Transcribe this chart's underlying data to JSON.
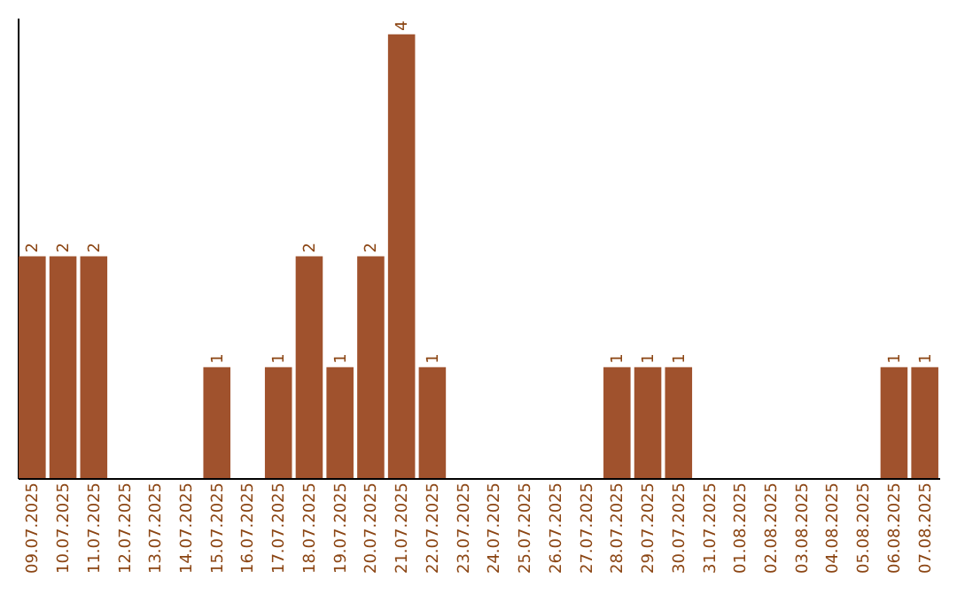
{
  "chart_data": {
    "type": "bar",
    "categories": [
      "09.07.2025",
      "10.07.2025",
      "11.07.2025",
      "12.07.2025",
      "13.07.2025",
      "14.07.2025",
      "15.07.2025",
      "16.07.2025",
      "17.07.2025",
      "18.07.2025",
      "19.07.2025",
      "20.07.2025",
      "21.07.2025",
      "22.07.2025",
      "23.07.2025",
      "24.07.2025",
      "25.07.2025",
      "26.07.2025",
      "27.07.2025",
      "28.07.2025",
      "29.07.2025",
      "30.07.2025",
      "31.07.2025",
      "01.08.2025",
      "02.08.2025",
      "03.08.2025",
      "04.08.2025",
      "05.08.2025",
      "06.08.2025",
      "07.08.2025"
    ],
    "values": [
      2,
      2,
      2,
      0,
      0,
      0,
      1,
      0,
      1,
      2,
      1,
      2,
      4,
      1,
      0,
      0,
      0,
      0,
      0,
      1,
      1,
      1,
      0,
      0,
      0,
      0,
      0,
      0,
      1,
      1
    ],
    "value_labels": [
      "2",
      "2",
      "2",
      null,
      null,
      null,
      "1",
      null,
      "1",
      "2",
      "1",
      "2",
      "4",
      "1",
      null,
      null,
      null,
      null,
      null,
      "1",
      "1",
      "1",
      null,
      null,
      null,
      null,
      null,
      null,
      "1",
      "1"
    ],
    "color": "#a0522d",
    "ylim": [
      0,
      4.15
    ]
  }
}
